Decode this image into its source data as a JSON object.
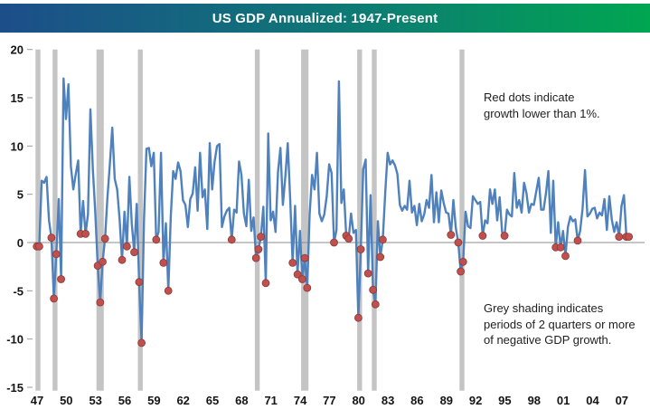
{
  "title_bar": {
    "title": "US GDP Annualized: 1947-Present",
    "gradient_left": "#1C4E8A",
    "gradient_mid": "#0E7876",
    "gradient_right": "#00A651",
    "text_color": "#FFFFFF"
  },
  "annotations": {
    "red_note_lines": [
      "Red dots indicate",
      "growth lower than 1%."
    ],
    "grey_note_lines": [
      "Grey shading indicates",
      "periods of 2 quarters or more",
      "of negative GDP growth."
    ]
  },
  "chart_data": {
    "type": "line",
    "title": "US GDP Annualized: 1947-Present",
    "series_name": "US real GDP quarterly growth, annualized (%)",
    "frequency": "quarterly",
    "start": "1947Q2",
    "start_year_fraction": 1947.25,
    "step_years": 0.25,
    "values": [
      -0.4,
      -0.4,
      6.4,
      6.2,
      6.8,
      2.3,
      0.5,
      -5.8,
      -1.2,
      4.5,
      -3.8,
      17.0,
      12.8,
      16.4,
      7.9,
      5.5,
      7.1,
      8.5,
      0.9,
      4.3,
      0.9,
      2.9,
      13.8,
      7.6,
      3.1,
      -2.4,
      -6.2,
      -2.0,
      0.4,
      4.6,
      8.1,
      11.9,
      6.6,
      5.5,
      2.4,
      -1.8,
      3.2,
      -0.4,
      6.8,
      1.9,
      -1.0,
      4.0,
      -4.1,
      -10.4,
      2.4,
      9.7,
      9.8,
      7.9,
      9.3,
      0.3,
      1.1,
      9.3,
      -2.1,
      2.0,
      -5.0,
      2.7,
      7.4,
      6.6,
      8.3,
      7.4,
      4.4,
      3.9,
      1.6,
      4.5,
      5.1,
      7.8,
      3.3,
      9.3,
      4.7,
      5.5,
      1.4,
      10.3,
      5.5,
      8.4,
      10.0,
      10.2,
      1.6,
      2.7,
      3.3,
      3.6,
      0.3,
      3.4,
      3.1,
      8.4,
      7.0,
      3.0,
      1.7,
      6.5,
      1.2,
      2.6,
      -1.6,
      -0.7,
      0.6,
      3.7,
      -4.2,
      11.3,
      2.3,
      3.2,
      1.1,
      7.3,
      9.8,
      3.9,
      6.8,
      10.3,
      4.5,
      -2.1,
      3.8,
      -3.3,
      1.2,
      -3.8,
      -1.6,
      -4.7,
      2.9,
      7.0,
      5.5,
      9.3,
      3.0,
      2.2,
      2.9,
      4.8,
      8.1,
      7.2,
      0.0,
      1.3,
      16.7,
      4.1,
      5.5,
      0.7,
      0.4,
      3.0,
      1.0,
      1.3,
      -7.8,
      -0.7,
      7.6,
      8.6,
      -3.2,
      4.9,
      -4.9,
      -6.4,
      2.2,
      -1.5,
      0.3,
      5.1,
      9.3,
      8.1,
      8.5,
      8.0,
      7.1,
      3.9,
      3.3,
      3.8,
      3.4,
      6.4,
      3.1,
      3.8,
      1.8,
      4.0,
      2.2,
      2.9,
      4.4,
      3.6,
      7.0,
      2.1,
      5.2,
      2.1,
      5.4,
      4.1,
      3.1,
      3.0,
      0.8,
      4.4,
      1.5,
      0.0,
      -3.0,
      -2.0,
      3.2,
      1.7,
      1.5,
      4.8,
      4.4,
      4.0,
      4.2,
      0.7,
      2.3,
      2.0,
      5.5,
      4.0,
      5.5,
      2.3,
      4.7,
      1.1,
      0.7,
      3.4,
      2.9,
      2.7,
      7.2,
      3.6,
      4.4,
      3.1,
      6.2,
      5.1,
      3.1,
      4.0,
      3.9,
      5.3,
      6.7,
      3.4,
      3.4,
      5.1,
      7.4,
      1.0,
      6.4,
      -0.5,
      2.1,
      -0.5,
      1.2,
      -1.4,
      1.6,
      2.7,
      2.2,
      2.4,
      0.2,
      1.2,
      3.5,
      7.5,
      2.7,
      3.0,
      3.5,
      3.6,
      2.5,
      3.1,
      2.8,
      4.5,
      1.3,
      4.8,
      2.4,
      1.1,
      2.1,
      0.6,
      3.8,
      4.9,
      0.6,
      0.6
    ],
    "ylim": [
      -15,
      20
    ],
    "y_ticks": [
      -15,
      -10,
      -5,
      0,
      5,
      10,
      15,
      20
    ],
    "x_tick_years": [
      1947,
      1950,
      1953,
      1956,
      1959,
      1962,
      1965,
      1968,
      1971,
      1974,
      1977,
      1980,
      1983,
      1986,
      1989,
      1992,
      1995,
      1998,
      2001,
      2004,
      2007
    ],
    "x_tick_labels": [
      "47",
      "50",
      "53",
      "56",
      "59",
      "62",
      "65",
      "68",
      "71",
      "74",
      "77",
      "80",
      "83",
      "86",
      "89",
      "92",
      "95",
      "98",
      "01",
      "04",
      "07"
    ],
    "grid": false,
    "legend": "none",
    "zero_line": true,
    "line_color": "#4F81BD",
    "red_dot_color": "#C0504D",
    "red_dot_stroke": "#8C3836",
    "red_dot_threshold": 1,
    "band_color": "#C4C4C4",
    "zero_line_color": "#8C8C8C",
    "recession_bands": [
      {
        "start": 1947.25,
        "end": 1947.5
      },
      {
        "start": 1949.0,
        "end": 1949.25
      },
      {
        "start": 1953.5,
        "end": 1954.0
      },
      {
        "start": 1957.75,
        "end": 1958.0
      },
      {
        "start": 1969.75,
        "end": 1970.0
      },
      {
        "start": 1974.5,
        "end": 1975.0
      },
      {
        "start": 1980.25,
        "end": 1980.5
      },
      {
        "start": 1981.75,
        "end": 1982.0
      },
      {
        "start": 1990.75,
        "end": 1991.0
      }
    ]
  }
}
